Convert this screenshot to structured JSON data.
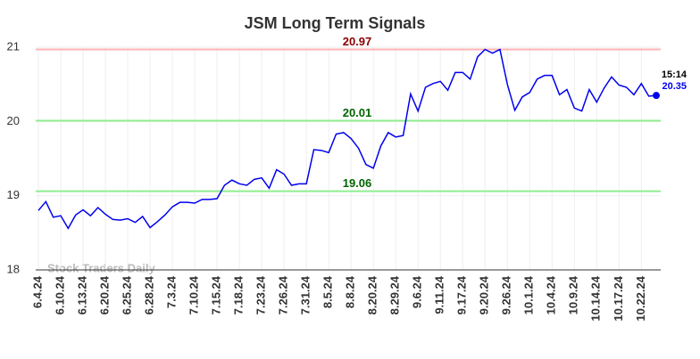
{
  "chart_data": {
    "type": "line",
    "title": "JSM Long Term Signals",
    "watermark": "Stock Traders Daily",
    "categories": [
      "6.4.24",
      null,
      null,
      "6.10.24",
      null,
      null,
      "6.13.24",
      null,
      null,
      "6.20.24",
      null,
      null,
      "6.25.24",
      null,
      null,
      "6.28.24",
      null,
      null,
      "7.3.24",
      null,
      null,
      "7.10.24",
      null,
      null,
      "7.15.24",
      null,
      null,
      "7.18.24",
      null,
      null,
      "7.23.24",
      null,
      null,
      "7.26.24",
      null,
      null,
      "7.31.24",
      null,
      null,
      "8.5.24",
      null,
      null,
      "8.8.24",
      null,
      null,
      "8.20.24",
      null,
      null,
      "8.29.24",
      null,
      null,
      "9.6.24",
      null,
      null,
      "9.11.24",
      null,
      null,
      "9.17.24",
      null,
      null,
      "9.20.24",
      null,
      null,
      "9.26.24",
      null,
      null,
      "10.1.24",
      null,
      null,
      "10.4.24",
      null,
      null,
      "10.9.24",
      null,
      null,
      "10.14.24",
      null,
      null,
      "10.17.24",
      null,
      null,
      "10.22.24",
      null,
      null
    ],
    "series": [
      {
        "color": "#0000ee",
        "values": [
          18.8,
          18.92,
          18.71,
          18.73,
          18.56,
          18.74,
          18.81,
          18.73,
          18.84,
          18.75,
          18.68,
          18.67,
          18.69,
          18.64,
          18.72,
          18.57,
          18.65,
          18.74,
          18.85,
          18.91,
          18.91,
          18.9,
          18.95,
          18.95,
          18.96,
          19.14,
          19.21,
          19.16,
          19.14,
          19.22,
          19.24,
          19.1,
          19.35,
          19.29,
          19.14,
          19.16,
          19.16,
          19.62,
          19.61,
          19.58,
          19.83,
          19.85,
          19.77,
          19.64,
          19.42,
          19.37,
          19.67,
          19.85,
          19.79,
          19.81,
          20.37,
          20.14,
          20.46,
          20.51,
          20.54,
          20.42,
          20.66,
          20.66,
          20.57,
          20.87,
          20.97,
          20.92,
          20.97,
          20.5,
          20.15,
          20.33,
          20.39,
          20.57,
          20.62,
          20.62,
          20.36,
          20.43,
          20.18,
          20.14,
          20.43,
          20.26,
          20.45,
          20.6,
          20.49,
          20.46,
          20.36,
          20.51,
          20.34,
          20.35
        ]
      }
    ],
    "last_time": "15:14",
    "levels": [
      {
        "value": 20.97,
        "color": "#ffb3b3",
        "label_color": "#8b0000"
      },
      {
        "value": 20.01,
        "color": "#90ee90",
        "label_color": "#006400"
      },
      {
        "value": 19.06,
        "color": "#90ee90",
        "label_color": "#006400"
      }
    ],
    "ylim": [
      18,
      21
    ],
    "yticks": [
      18,
      19,
      20,
      21
    ],
    "grid": true
  }
}
